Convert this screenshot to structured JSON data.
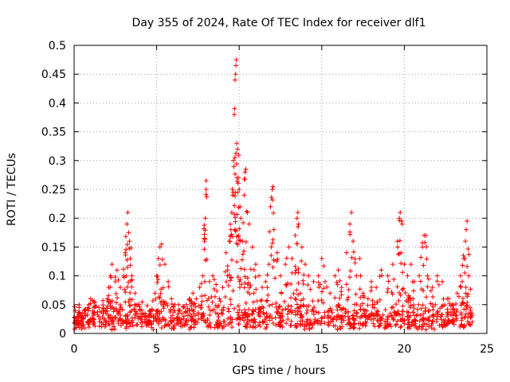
{
  "chart_data": {
    "type": "scatter",
    "title": "Day 355 of 2024, Rate Of TEC Index for receiver dlf1",
    "xlabel": "GPS time / hours",
    "ylabel": "ROTI / TECUs",
    "xlim": [
      0,
      25
    ],
    "ylim": [
      0,
      0.5
    ],
    "xticks": [
      "0",
      "5",
      "10",
      "15",
      "20",
      "25"
    ],
    "yticks": [
      "0",
      "0.05",
      "0.1",
      "0.15",
      "0.2",
      "0.25",
      "0.3",
      "0.35",
      "0.4",
      "0.45",
      "0.5"
    ],
    "grid": true,
    "marker": "+",
    "color": "#ff0000",
    "series": [
      {
        "values_note": "",
        "points": [
          [
            0.1,
            0.02
          ],
          [
            0.2,
            0.03
          ],
          [
            0.3,
            0.045
          ],
          [
            0.5,
            0.035
          ],
          [
            0.7,
            0.04
          ],
          [
            0.9,
            0.05
          ],
          [
            1.0,
            0.06
          ],
          [
            1.2,
            0.055
          ],
          [
            1.5,
            0.045
          ],
          [
            1.8,
            0.04
          ],
          [
            2.0,
            0.06
          ],
          [
            2.1,
            0.08
          ],
          [
            2.2,
            0.1
          ],
          [
            2.3,
            0.12
          ],
          [
            2.5,
            0.09
          ],
          [
            2.6,
            0.11
          ],
          [
            2.8,
            0.08
          ],
          [
            3.0,
            0.1
          ],
          [
            3.1,
            0.14
          ],
          [
            3.2,
            0.19
          ],
          [
            3.25,
            0.21
          ],
          [
            3.3,
            0.175
          ],
          [
            3.35,
            0.16
          ],
          [
            3.4,
            0.13
          ],
          [
            3.5,
            0.1
          ],
          [
            3.7,
            0.07
          ],
          [
            4.0,
            0.04
          ],
          [
            4.3,
            0.035
          ],
          [
            4.6,
            0.04
          ],
          [
            4.9,
            0.07
          ],
          [
            5.0,
            0.1
          ],
          [
            5.1,
            0.13
          ],
          [
            5.2,
            0.15
          ],
          [
            5.3,
            0.155
          ],
          [
            5.5,
            0.12
          ],
          [
            5.7,
            0.09
          ],
          [
            5.9,
            0.06
          ],
          [
            6.1,
            0.05
          ],
          [
            6.4,
            0.04
          ],
          [
            6.8,
            0.05
          ],
          [
            7.0,
            0.06
          ],
          [
            7.2,
            0.07
          ],
          [
            7.4,
            0.06
          ],
          [
            7.6,
            0.08
          ],
          [
            7.8,
            0.1
          ],
          [
            7.9,
            0.16
          ],
          [
            7.95,
            0.2
          ],
          [
            8.0,
            0.25
          ],
          [
            8.0,
            0.265
          ],
          [
            8.2,
            0.09
          ],
          [
            8.4,
            0.1
          ],
          [
            8.6,
            0.085
          ],
          [
            8.8,
            0.06
          ],
          [
            9.0,
            0.08
          ],
          [
            9.2,
            0.14
          ],
          [
            9.3,
            0.11
          ],
          [
            9.4,
            0.16
          ],
          [
            9.5,
            0.18
          ],
          [
            9.55,
            0.21
          ],
          [
            9.6,
            0.24
          ],
          [
            9.65,
            0.3
          ],
          [
            9.7,
            0.38
          ],
          [
            9.72,
            0.39
          ],
          [
            9.75,
            0.44
          ],
          [
            9.78,
            0.45
          ],
          [
            9.8,
            0.465
          ],
          [
            9.82,
            0.475
          ],
          [
            9.85,
            0.33
          ],
          [
            9.9,
            0.32
          ],
          [
            9.95,
            0.27
          ],
          [
            10.0,
            0.25
          ],
          [
            10.05,
            0.22
          ],
          [
            10.1,
            0.2
          ],
          [
            10.2,
            0.16
          ],
          [
            10.3,
            0.24
          ],
          [
            10.35,
            0.28
          ],
          [
            10.4,
            0.285
          ],
          [
            10.5,
            0.21
          ],
          [
            10.6,
            0.19
          ],
          [
            10.8,
            0.15
          ],
          [
            11.0,
            0.12
          ],
          [
            11.2,
            0.1
          ],
          [
            11.4,
            0.08
          ],
          [
            11.6,
            0.09
          ],
          [
            11.8,
            0.12
          ],
          [
            11.9,
            0.22
          ],
          [
            12.0,
            0.25
          ],
          [
            12.05,
            0.255
          ],
          [
            12.1,
            0.18
          ],
          [
            12.3,
            0.14
          ],
          [
            12.5,
            0.1
          ],
          [
            12.8,
            0.12
          ],
          [
            13.0,
            0.15
          ],
          [
            13.2,
            0.13
          ],
          [
            13.4,
            0.17
          ],
          [
            13.5,
            0.2
          ],
          [
            13.55,
            0.21
          ],
          [
            13.6,
            0.19
          ],
          [
            13.8,
            0.15
          ],
          [
            14.0,
            0.12
          ],
          [
            14.2,
            0.1
          ],
          [
            14.5,
            0.09
          ],
          [
            14.8,
            0.1
          ],
          [
            15.0,
            0.13
          ],
          [
            15.2,
            0.09
          ],
          [
            15.5,
            0.07
          ],
          [
            15.8,
            0.1
          ],
          [
            16.0,
            0.11
          ],
          [
            16.2,
            0.08
          ],
          [
            16.5,
            0.14
          ],
          [
            16.7,
            0.19
          ],
          [
            16.8,
            0.21
          ],
          [
            16.9,
            0.16
          ],
          [
            17.1,
            0.1
          ],
          [
            17.3,
            0.13
          ],
          [
            17.5,
            0.07
          ],
          [
            17.8,
            0.06
          ],
          [
            18.0,
            0.09
          ],
          [
            18.3,
            0.08
          ],
          [
            18.6,
            0.11
          ],
          [
            19.0,
            0.1
          ],
          [
            19.3,
            0.12
          ],
          [
            19.6,
            0.15
          ],
          [
            19.7,
            0.2
          ],
          [
            19.75,
            0.21
          ],
          [
            19.8,
            0.14
          ],
          [
            20.0,
            0.12
          ],
          [
            20.2,
            0.1
          ],
          [
            20.4,
            0.12
          ],
          [
            20.6,
            0.09
          ],
          [
            20.9,
            0.1
          ],
          [
            21.1,
            0.15
          ],
          [
            21.2,
            0.17
          ],
          [
            21.3,
            0.17
          ],
          [
            21.4,
            0.1
          ],
          [
            21.7,
            0.08
          ],
          [
            22.0,
            0.1
          ],
          [
            22.3,
            0.09
          ],
          [
            22.6,
            0.06
          ],
          [
            22.9,
            0.05
          ],
          [
            23.2,
            0.07
          ],
          [
            23.4,
            0.1
          ],
          [
            23.5,
            0.09
          ],
          [
            23.6,
            0.13
          ],
          [
            23.7,
            0.16
          ],
          [
            23.75,
            0.18
          ],
          [
            23.8,
            0.195
          ],
          [
            23.9,
            0.1
          ],
          [
            24.0,
            0.04
          ]
        ]
      }
    ]
  }
}
